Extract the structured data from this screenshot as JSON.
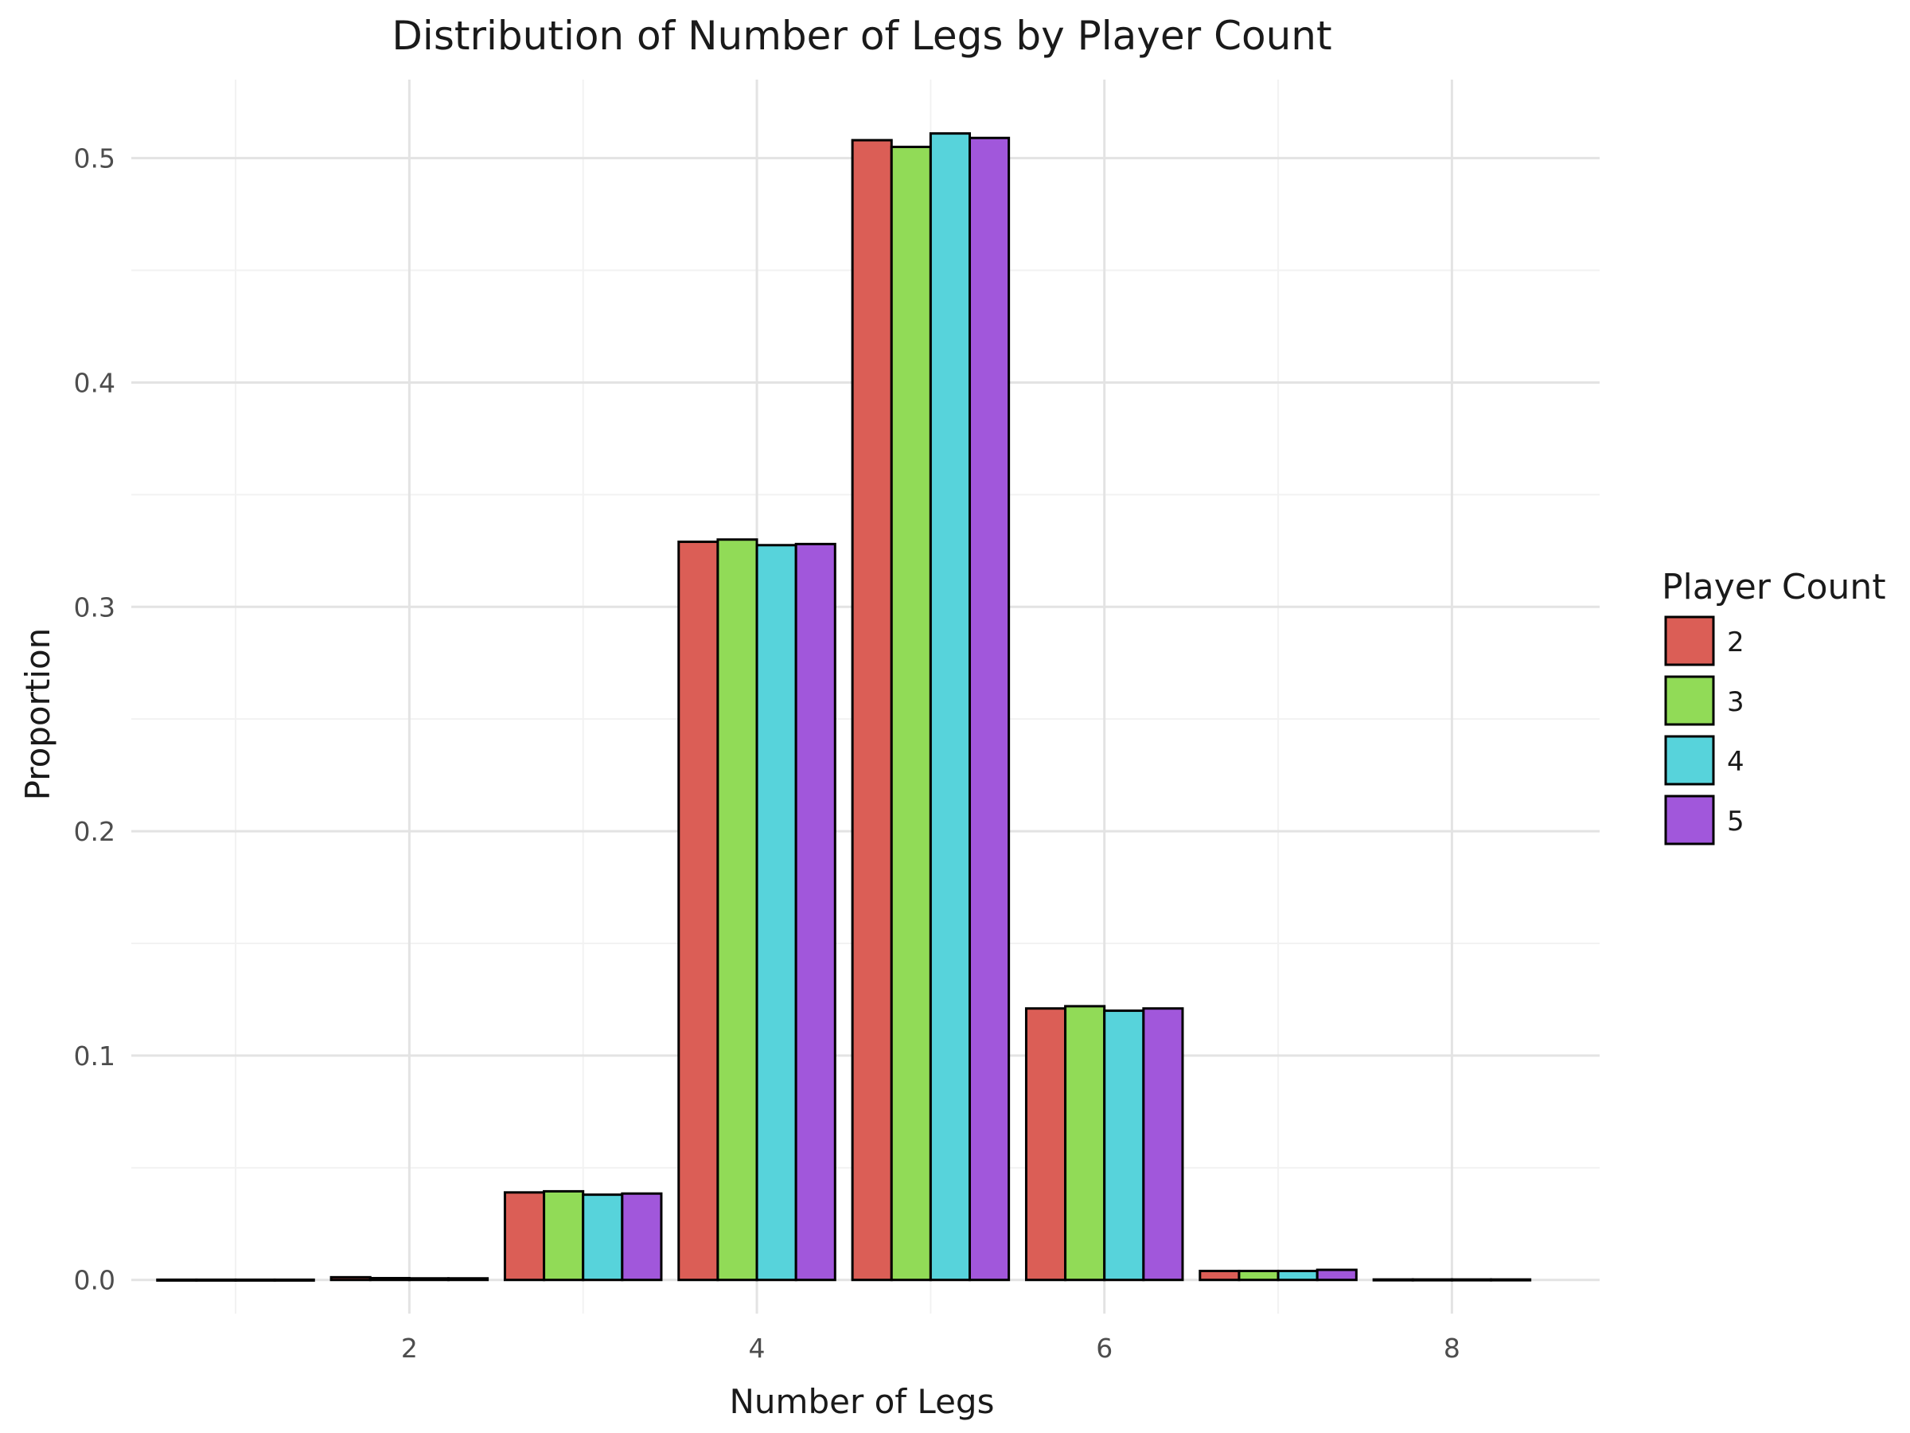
{
  "chart_data": {
    "type": "bar",
    "title": "Distribution of Number of Legs by Player Count",
    "xlabel": "Number of Legs",
    "ylabel": "Proportion",
    "categories": [
      1,
      2,
      3,
      4,
      5,
      6,
      7,
      8
    ],
    "x_ticks": [
      2,
      4,
      6,
      8
    ],
    "x_tick_labels": [
      "2",
      "4",
      "6",
      "8"
    ],
    "xlim": [
      0.4,
      8.85
    ],
    "y_ticks": [
      0.0,
      0.1,
      0.2,
      0.3,
      0.4,
      0.5
    ],
    "y_tick_labels": [
      "0.0",
      "0.1",
      "0.2",
      "0.3",
      "0.4",
      "0.5"
    ],
    "ylim": [
      -0.015,
      0.535
    ],
    "grid": true,
    "legend": {
      "title": "Player Count",
      "placement": "right",
      "entries": [
        "2",
        "3",
        "4",
        "5"
      ]
    },
    "series": [
      {
        "name": "2",
        "color": "#DB5E56",
        "values": [
          0.0001,
          0.0012,
          0.039,
          0.329,
          0.508,
          0.121,
          0.004,
          0.0002
        ]
      },
      {
        "name": "3",
        "color": "#91DB57",
        "values": [
          0.0001,
          0.0008,
          0.0395,
          0.33,
          0.505,
          0.122,
          0.004,
          0.0002
        ]
      },
      {
        "name": "4",
        "color": "#57D3DB",
        "values": [
          0.0001,
          0.0007,
          0.038,
          0.3275,
          0.511,
          0.12,
          0.004,
          0.0002
        ]
      },
      {
        "name": "5",
        "color": "#A157DB",
        "values": [
          0.0001,
          0.0007,
          0.0385,
          0.328,
          0.509,
          0.121,
          0.0045,
          0.0002
        ]
      }
    ]
  }
}
